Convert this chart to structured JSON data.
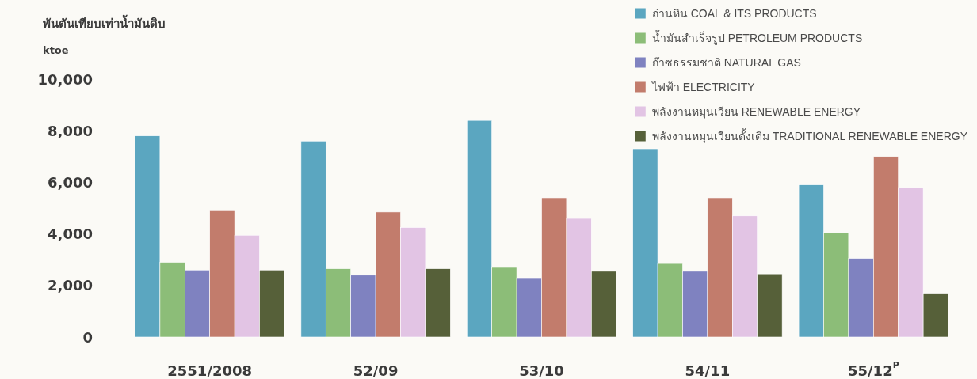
{
  "chart_data": {
    "type": "bar",
    "ylabel": "พันตันเทียบเท่าน้ำมันดิบ ktoe",
    "categories": [
      "2551/2008",
      "52/09",
      "53/10",
      "54/11",
      "55/12$^{P}$"
    ],
    "series": [
      {
        "name": "ถ่านหิน COAL & ITS PRODUCTS",
        "color": "#5ba6c0",
        "values": [
          7800,
          7600,
          8400,
          7300,
          5900
        ]
      },
      {
        "name": "น้ำมันสำเร็จรูป PETROLEUM PRODUCTS",
        "color": "#8cbd78",
        "values": [
          2900,
          2650,
          2700,
          2850,
          4050
        ]
      },
      {
        "name": "ก๊าซธรรมชาติ NATURAL GAS",
        "color": "#7f82c0",
        "values": [
          2600,
          2400,
          2300,
          2550,
          3050
        ]
      },
      {
        "name": "ไฟฟ้า ELECTRICITY",
        "color": "#c27c6c",
        "values": [
          4900,
          4850,
          5400,
          5400,
          7000
        ]
      },
      {
        "name": "พลังงานหมุนเวียน RENEWABLE ENERGY",
        "color": "#e2c4e4",
        "values": [
          3950,
          4250,
          4600,
          4700,
          5800
        ]
      },
      {
        "name": "พลังงานหมุนเวียนดั้งเดิม TRADITIONAL RENEWABLE ENERGY",
        "color": "#566039",
        "values": [
          2600,
          2650,
          2550,
          2450,
          1700
        ]
      }
    ],
    "ylim": [
      0,
      10000
    ],
    "yticks": [
      0,
      {
        "value": 2000,
        "label": "2,000"
      },
      {
        "value": 4000,
        "label": "4,000"
      },
      {
        "value": 6000,
        "label": "6,000"
      },
      {
        "value": 8000,
        "label": "8,000"
      },
      {
        "value": 10000,
        "label": "10,000"
      }
    ],
    "legend": "top right"
  }
}
